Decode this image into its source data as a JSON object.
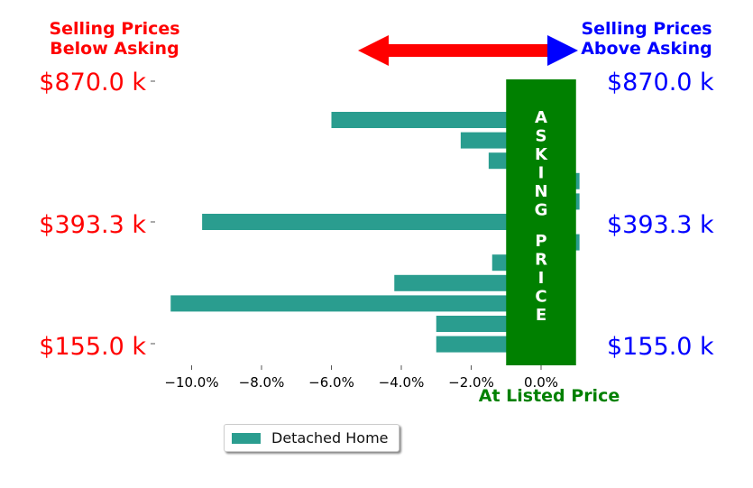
{
  "header": {
    "left_line1": "Selling Prices",
    "left_line2": "Below Asking",
    "right_line1": "Selling Prices",
    "right_line2": "Above Asking"
  },
  "asking_band_text": "ASKING PRICE",
  "xlabel_note": "At Listed Price",
  "legend": {
    "label": "Detached Home"
  },
  "colors": {
    "bar": "#2a9d8f",
    "asking_band": "#008000",
    "below": "#ff0000",
    "above": "#0000ff",
    "arrow_left": "#ff0000",
    "arrow_right": "#0000ff"
  },
  "chart_data": {
    "type": "bar",
    "orientation": "horizontal",
    "series": [
      {
        "name": "Detached Home",
        "values": [
          -6.0,
          -2.3,
          -1.5,
          1.1,
          1.1,
          -9.7,
          1.1,
          -1.4,
          -4.2,
          -10.6,
          -3.0,
          -3.0
        ]
      }
    ],
    "xlim": [
      -11,
      1.3
    ],
    "x_ticks": [
      "−10.0%",
      "−8.0%",
      "−6.0%",
      "−4.0%",
      "−2.0%",
      "0.0%"
    ],
    "x_tick_values": [
      -10,
      -8,
      -6,
      -4,
      -2,
      0
    ],
    "y_tick_labels": [
      "$870.0 k",
      "$393.3 k",
      "$155.0 k"
    ],
    "asking_band_range": [
      -1,
      1
    ]
  }
}
